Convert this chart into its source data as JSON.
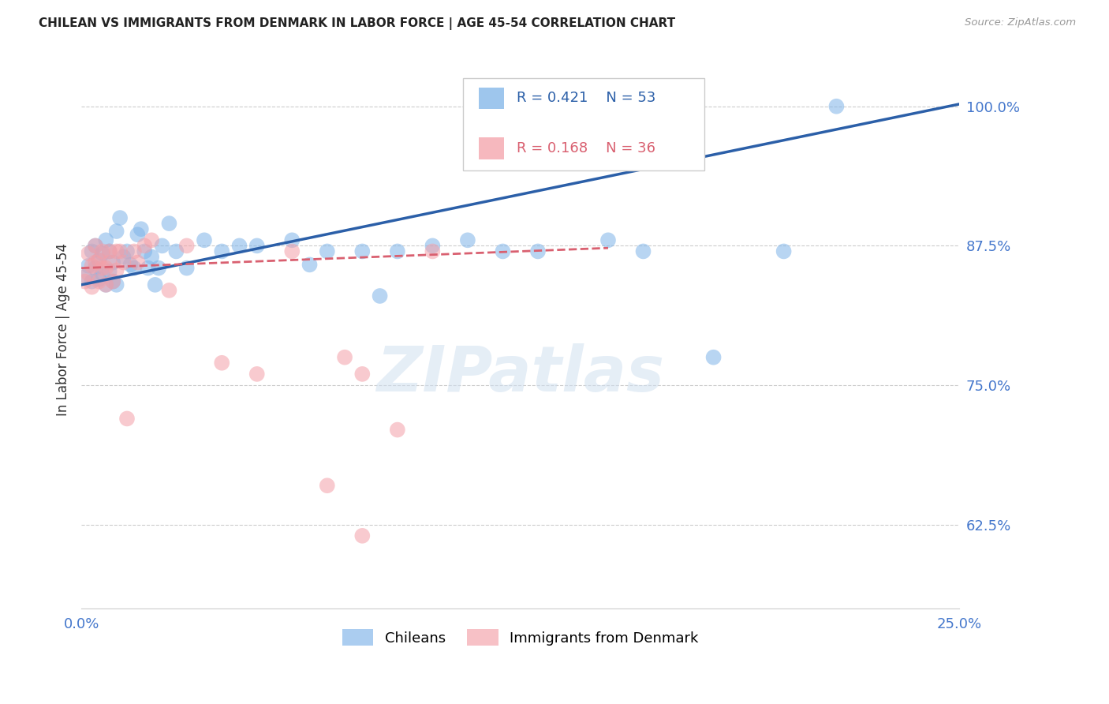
{
  "title": "CHILEAN VS IMMIGRANTS FROM DENMARK IN LABOR FORCE | AGE 45-54 CORRELATION CHART",
  "source": "Source: ZipAtlas.com",
  "ylabel": "In Labor Force | Age 45-54",
  "xlim": [
    0.0,
    0.25
  ],
  "ylim": [
    0.55,
    1.05
  ],
  "ytick_positions": [
    0.625,
    0.75,
    0.875,
    1.0
  ],
  "ytick_labels": [
    "62.5%",
    "75.0%",
    "87.5%",
    "100.0%"
  ],
  "color_blue": "#7EB3E8",
  "color_pink": "#F4A0A8",
  "color_blue_line": "#2B5FA8",
  "color_pink_line": "#D96070",
  "color_axis_labels": "#4477CC",
  "grid_color": "#CCCCCC",
  "background_color": "#FFFFFF",
  "watermark": "ZIPatlas",
  "blue_trend_x0": 0.0,
  "blue_trend_y0": 0.84,
  "blue_trend_x1": 0.25,
  "blue_trend_y1": 1.002,
  "pink_trend_x0": 0.0,
  "pink_trend_y0": 0.855,
  "pink_trend_x1": 0.15,
  "pink_trend_y1": 0.873,
  "chilean_x": [
    0.001,
    0.002,
    0.003,
    0.003,
    0.004,
    0.004,
    0.005,
    0.005,
    0.006,
    0.006,
    0.007,
    0.007,
    0.008,
    0.008,
    0.009,
    0.009,
    0.01,
    0.01,
    0.011,
    0.012,
    0.013,
    0.014,
    0.015,
    0.016,
    0.017,
    0.018,
    0.019,
    0.02,
    0.021,
    0.022,
    0.023,
    0.025,
    0.027,
    0.03,
    0.035,
    0.04,
    0.045,
    0.05,
    0.06,
    0.065,
    0.07,
    0.08,
    0.085,
    0.09,
    0.1,
    0.11,
    0.12,
    0.13,
    0.15,
    0.16,
    0.18,
    0.2,
    0.215
  ],
  "chilean_y": [
    0.847,
    0.857,
    0.843,
    0.87,
    0.855,
    0.875,
    0.845,
    0.862,
    0.85,
    0.868,
    0.84,
    0.88,
    0.852,
    0.87,
    0.843,
    0.86,
    0.84,
    0.888,
    0.9,
    0.865,
    0.87,
    0.858,
    0.855,
    0.885,
    0.89,
    0.87,
    0.855,
    0.865,
    0.84,
    0.855,
    0.875,
    0.895,
    0.87,
    0.855,
    0.88,
    0.87,
    0.875,
    0.875,
    0.88,
    0.858,
    0.87,
    0.87,
    0.83,
    0.87,
    0.875,
    0.88,
    0.87,
    0.87,
    0.88,
    0.87,
    0.775,
    0.87,
    1.0
  ],
  "denmark_x": [
    0.001,
    0.002,
    0.002,
    0.003,
    0.003,
    0.004,
    0.004,
    0.005,
    0.005,
    0.006,
    0.006,
    0.007,
    0.007,
    0.008,
    0.008,
    0.009,
    0.01,
    0.01,
    0.011,
    0.012,
    0.013,
    0.015,
    0.016,
    0.018,
    0.02,
    0.025,
    0.03,
    0.04,
    0.05,
    0.06,
    0.075,
    0.08,
    0.09,
    0.1,
    0.07,
    0.08
  ],
  "denmark_y": [
    0.843,
    0.85,
    0.868,
    0.838,
    0.857,
    0.86,
    0.875,
    0.843,
    0.862,
    0.855,
    0.87,
    0.84,
    0.855,
    0.86,
    0.87,
    0.843,
    0.853,
    0.87,
    0.87,
    0.86,
    0.72,
    0.87,
    0.86,
    0.875,
    0.88,
    0.835,
    0.875,
    0.77,
    0.76,
    0.87,
    0.775,
    0.76,
    0.71,
    0.87,
    0.66,
    0.615
  ]
}
